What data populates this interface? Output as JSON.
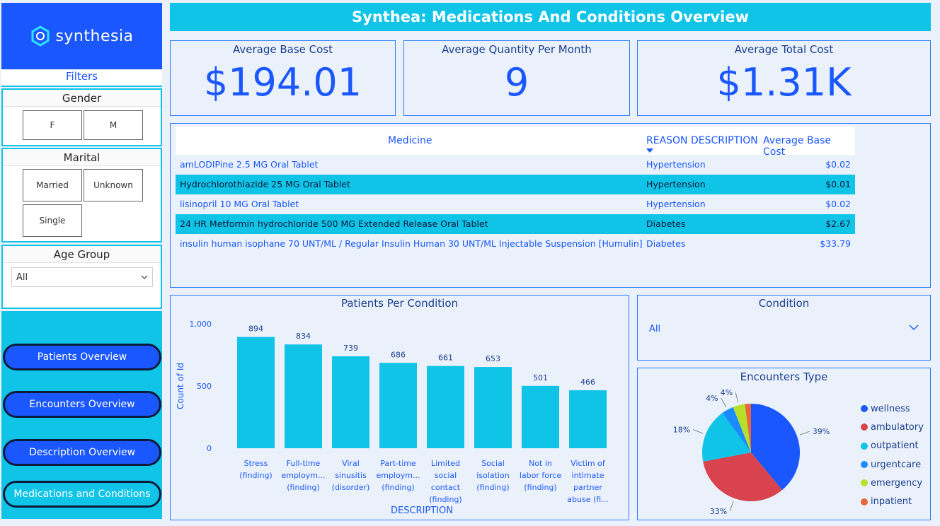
{
  "brand": {
    "logo_text": "synthesia"
  },
  "header": {
    "title": "Synthea: Medications And Conditions Overview"
  },
  "filters": {
    "title": "Filters",
    "gender": {
      "title": "Gender",
      "options": [
        "F",
        "M"
      ]
    },
    "marital": {
      "title": "Marital",
      "options": [
        "Married",
        "Unknown",
        "Single"
      ]
    },
    "age_group": {
      "title": "Age Group",
      "value": "All"
    }
  },
  "nav": {
    "items": [
      "Patients Overview",
      "Encounters Overview",
      "Description Overview",
      "Medications and Conditions"
    ]
  },
  "kpis": [
    {
      "label": "Average Base Cost",
      "value": "$194.01"
    },
    {
      "label": "Average Quantity Per Month",
      "value": "9"
    },
    {
      "label": "Average Total Cost",
      "value": "$1.31K"
    }
  ],
  "table": {
    "headers": [
      "Medicine",
      "REASON DESCRIPTION",
      "Average Base Cost"
    ],
    "rows": [
      {
        "medicine": "amLODIPine 2.5 MG Oral Tablet",
        "reason": "Hypertension",
        "cost": "$0.02"
      },
      {
        "medicine": "Hydrochlorothiazide 25 MG Oral Tablet",
        "reason": "Hypertension",
        "cost": "$0.01"
      },
      {
        "medicine": "lisinopril 10 MG Oral Tablet",
        "reason": "Hypertension",
        "cost": "$0.02"
      },
      {
        "medicine": "24 HR Metformin hydrochloride 500 MG Extended Release Oral Tablet",
        "reason": "Diabetes",
        "cost": "$2.67"
      },
      {
        "medicine": "insulin human isophane 70 UNT/ML / Regular Insulin Human 30 UNT/ML Injectable Suspension [Humulin]",
        "reason": "Diabetes",
        "cost": "$33.79"
      }
    ]
  },
  "condition_slicer": {
    "title": "Condition",
    "value": "All"
  },
  "colors": {
    "accent": "#1a57ff",
    "cyan": "#10c4e8",
    "navy": "#0b1a3a"
  },
  "chart_data": [
    {
      "type": "bar",
      "title": "Patients Per Condition",
      "xlabel": "DESCRIPTION",
      "ylabel": "Count of Id",
      "ylim": [
        0,
        1000
      ],
      "yticks": [
        "0",
        "500",
        "1,000"
      ],
      "categories": [
        [
          "Stress",
          "(finding)"
        ],
        [
          "Full-time",
          "employm...",
          "(finding)"
        ],
        [
          "Viral",
          "sinusitis",
          "(disorder)"
        ],
        [
          "Part-time",
          "employm...",
          "(finding)"
        ],
        [
          "Limited",
          "social",
          "contact",
          "(finding)"
        ],
        [
          "Social",
          "isolation",
          "(finding)"
        ],
        [
          "Not in",
          "labor force",
          "(finding)"
        ],
        [
          "Victim of",
          "intimate",
          "partner",
          "abuse (fi..."
        ]
      ],
      "values": [
        894,
        834,
        739,
        686,
        661,
        653,
        501,
        466
      ],
      "color": "#10c4e8"
    },
    {
      "type": "pie",
      "title": "Encounters Type",
      "labels": [
        "wellness",
        "ambulatory",
        "outpatient",
        "urgentcare",
        "emergency",
        "inpatient"
      ],
      "values": [
        39,
        33,
        18,
        4,
        4,
        2
      ],
      "display_labels": [
        "39%",
        "33%",
        "18%",
        "4%",
        "4%",
        ""
      ],
      "colors": [
        "#1a57ff",
        "#d9434e",
        "#10c4e8",
        "#1a8cff",
        "#b6e02a",
        "#e8663a"
      ]
    }
  ]
}
